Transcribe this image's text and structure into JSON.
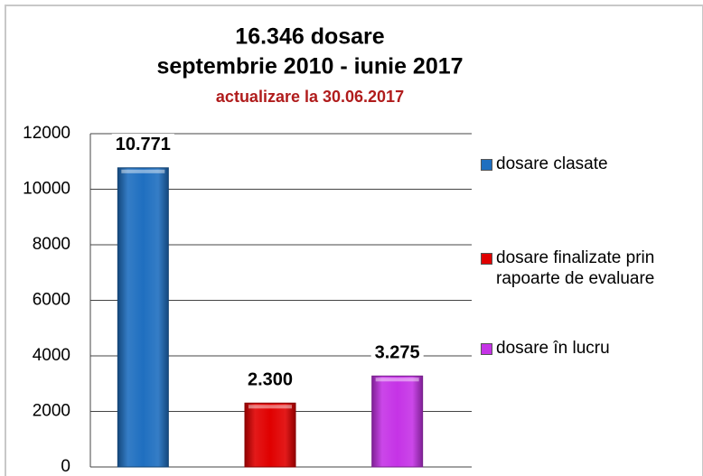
{
  "chart_data": {
    "type": "bar",
    "title": [
      "16.346 dosare",
      "septembrie 2010 - iunie 2017"
    ],
    "subtitle": "actualizare la 30.06.2017",
    "series": [
      {
        "name": "dosare clasate",
        "color": "#1f6fc0",
        "values": [
          10771
        ],
        "value_labels": [
          "10.771"
        ]
      },
      {
        "name": "dosare finalizate prin rapoarte de evaluare",
        "color": "#e00000",
        "values": [
          2300
        ],
        "value_labels": [
          "2.300"
        ]
      },
      {
        "name": "dosare în lucru",
        "color": "#c533e6",
        "values": [
          3275
        ],
        "value_labels": [
          "3.275"
        ]
      }
    ],
    "ylim": [
      0,
      12000
    ],
    "yticks": [
      0,
      2000,
      4000,
      6000,
      8000,
      10000,
      12000
    ],
    "grid": true,
    "legend": "right"
  }
}
